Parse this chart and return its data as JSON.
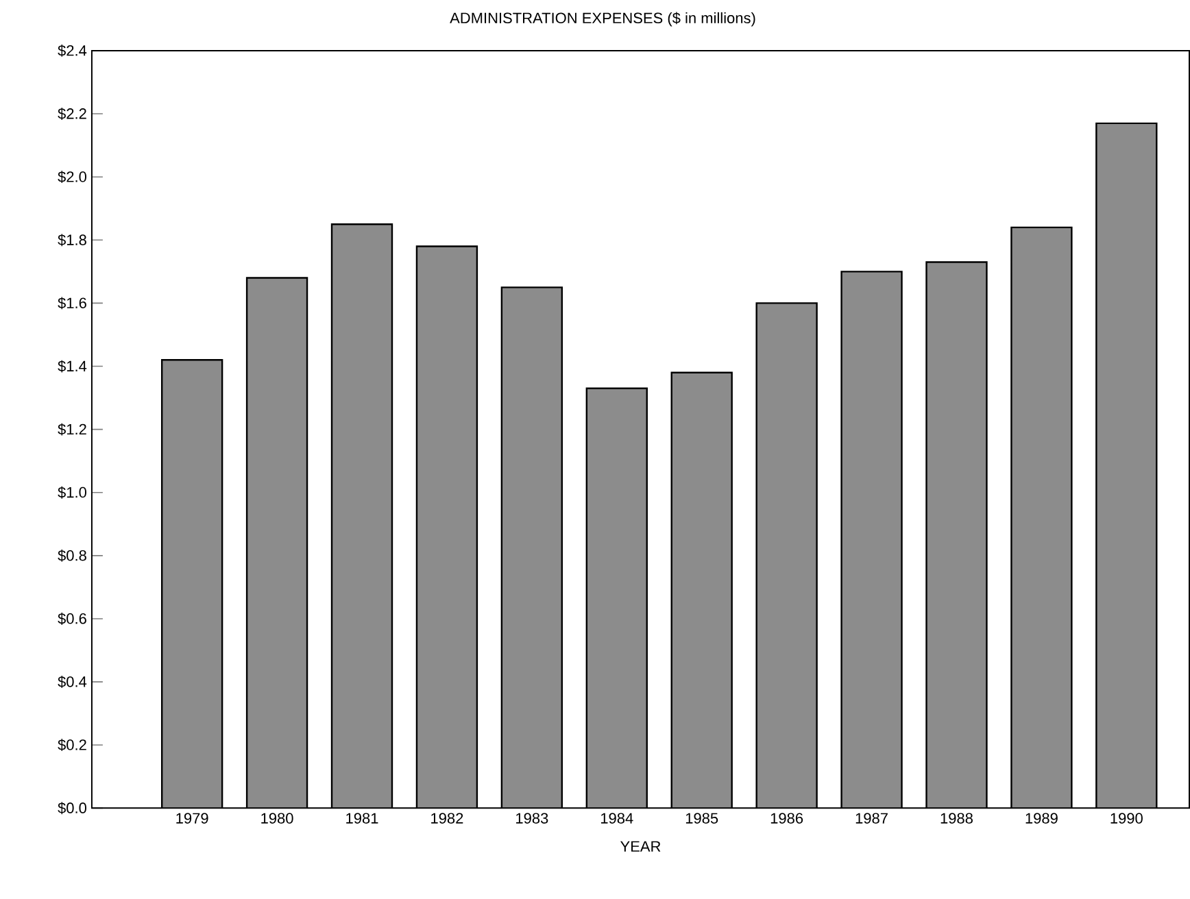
{
  "chart_data": {
    "type": "bar",
    "title": "ADMINISTRATION EXPENSES ($ in millions)",
    "xlabel": "YEAR",
    "categories": [
      "1979",
      "1980",
      "1981",
      "1982",
      "1983",
      "1984",
      "1985",
      "1986",
      "1987",
      "1988",
      "1989",
      "1990"
    ],
    "values": [
      1.42,
      1.68,
      1.85,
      1.78,
      1.65,
      1.33,
      1.38,
      1.6,
      1.7,
      1.73,
      1.84,
      2.17
    ],
    "color": "#8c8c8c",
    "ylim": [
      0,
      2.4
    ],
    "yticks": [
      {
        "value": 0,
        "label": "$0.0"
      },
      {
        "value": 0.2,
        "label": "$0.2"
      },
      {
        "value": 0.4,
        "label": "$0.4"
      },
      {
        "value": 0.6,
        "label": "$0.6"
      },
      {
        "value": 0.8,
        "label": "$0.8"
      },
      {
        "value": 1.0,
        "label": "$1.0"
      },
      {
        "value": 1.2,
        "label": "$1.2"
      },
      {
        "value": 1.4,
        "label": "$1.4"
      },
      {
        "value": 1.6,
        "label": "$1.6"
      },
      {
        "value": 1.8,
        "label": "$1.8"
      },
      {
        "value": 2.0,
        "label": "$2.0"
      },
      {
        "value": 2.2,
        "label": "$2.2"
      },
      {
        "value": 2.4,
        "label": "$2.4"
      }
    ],
    "grid": false
  }
}
